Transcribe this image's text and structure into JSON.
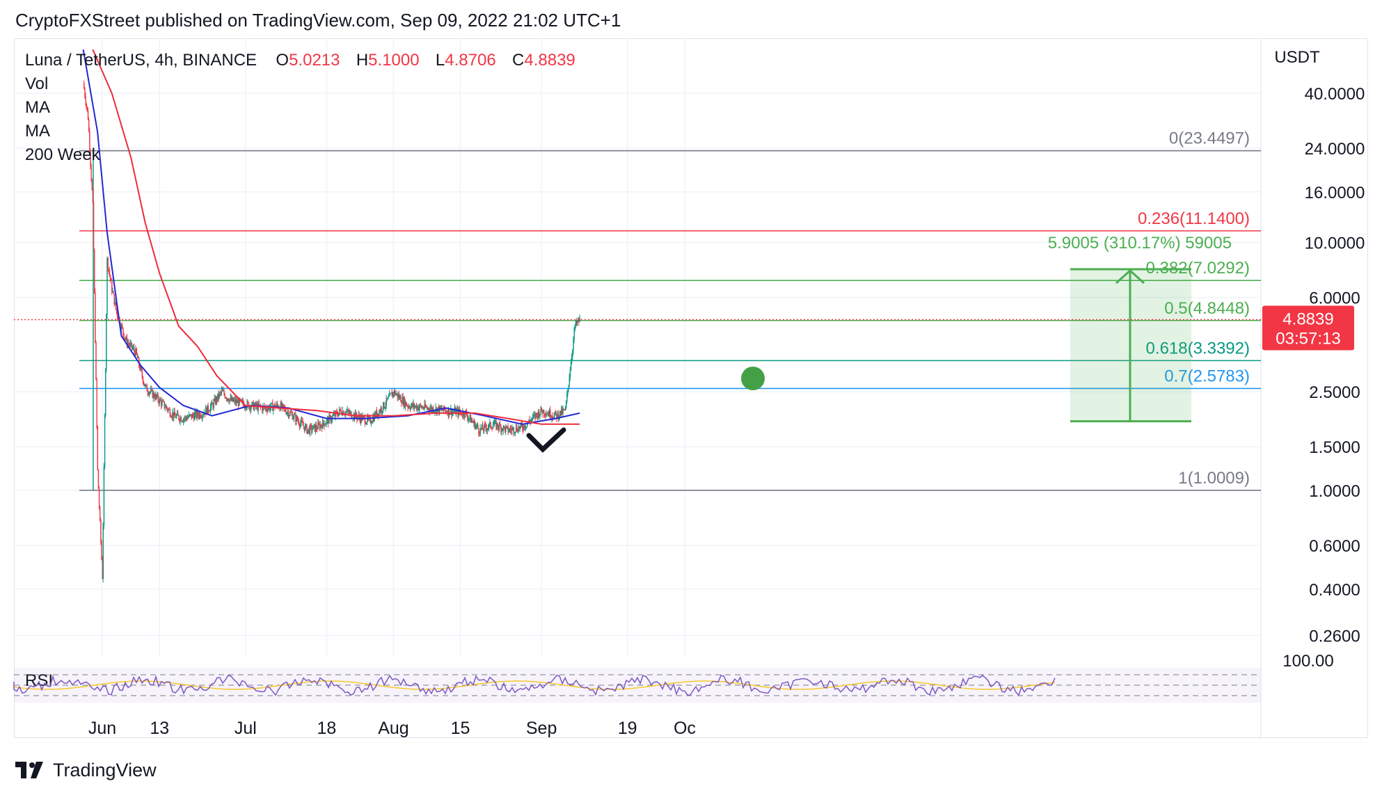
{
  "header": {
    "published_line": "CryptoFXStreet published on TradingView.com, Sep 09, 2022 21:02 UTC+1"
  },
  "legend": {
    "symbol": "Luna / TetherUS, 4h, BINANCE",
    "open_label": "O",
    "open_value": "5.0213",
    "high_label": "H",
    "high_value": "5.1000",
    "low_label": "L",
    "low_value": "4.8706",
    "close_label": "C",
    "close_value": "4.8839",
    "indicators": [
      "Vol",
      "MA",
      "MA",
      "200 Week"
    ]
  },
  "footer": {
    "brand": "TradingView"
  },
  "colors": {
    "up": "#089981",
    "down": "#f23645",
    "ma_fast": "#2128d4",
    "ma_slow": "#ee2b3b",
    "fib_green": "#4caf50",
    "fib_teal": "#089981",
    "fib_blue": "#2196f3",
    "fib_red": "#f23645",
    "fib_gray": "#787b86",
    "price_tag": "#f23645",
    "rsi": "#7e57c2",
    "rsi_ma": "#f5c92a"
  },
  "chart_data": {
    "type": "line",
    "price_scale": "log",
    "currency": "USDT",
    "y_ticks": [
      "40.0000",
      "24.0000",
      "16.0000",
      "10.0000",
      "6.0000",
      "2.5000",
      "1.5000",
      "1.0000",
      "0.6000",
      "0.4000",
      "0.2600"
    ],
    "x_ticks": [
      "Jun",
      "13",
      "Jul",
      "18",
      "Aug",
      "15",
      "Sep",
      "19",
      "Oc"
    ],
    "price_series": {
      "name": "Luna / TetherUS",
      "x": [
        "May 28",
        "May 29",
        "May 30",
        "May 31",
        "Jun 1",
        "Jun 2",
        "Jun 3",
        "Jun 4",
        "Jun 6",
        "Jun 8",
        "Jun 10",
        "Jun 12",
        "Jun 14",
        "Jun 16",
        "Jun 18",
        "Jun 20",
        "Jun 22",
        "Jun 24",
        "Jun 26",
        "Jun 28",
        "Jun 30",
        "Jul 2",
        "Jul 5",
        "Jul 8",
        "Jul 11",
        "Jul 14",
        "Jul 16",
        "Jul 18",
        "Jul 21",
        "Jul 24",
        "Jul 27",
        "Jul 30",
        "Aug 1",
        "Aug 4",
        "Aug 8",
        "Aug 12",
        "Aug 16",
        "Aug 19",
        "Aug 22",
        "Aug 25",
        "Aug 28",
        "Sep 1",
        "Sep 4",
        "Sep 6",
        "Sep 8",
        "Sep 9"
      ],
      "close": [
        44,
        32,
        14,
        1.2,
        0.45,
        8.5,
        6.5,
        5.2,
        4.0,
        3.6,
        2.6,
        2.4,
        2.2,
        2.0,
        1.95,
        2.0,
        2.05,
        2.2,
        2.5,
        2.3,
        2.25,
        2.2,
        2.15,
        2.2,
        2.0,
        1.75,
        1.8,
        1.9,
        2.1,
        2.0,
        1.9,
        2.2,
        2.5,
        2.2,
        2.15,
        2.1,
        2.05,
        1.75,
        1.85,
        1.75,
        1.8,
        2.1,
        2.0,
        2.1,
        4.6,
        4.8839
      ]
    },
    "ma_series": [
      {
        "name": "MA",
        "x": [
          "May 28",
          "May 31",
          "Jun 2",
          "Jun 5",
          "Jun 9",
          "Jun 13",
          "Jun 18",
          "Jun 24",
          "Jul 2",
          "Jul 10",
          "Jul 18",
          "Jul 26",
          "Aug 4",
          "Aug 12",
          "Aug 20",
          "Aug 28",
          "Sep 4",
          "Sep 9"
        ],
        "values": [
          60,
          28,
          11,
          4.2,
          3.2,
          2.6,
          2.2,
          2.0,
          2.2,
          2.15,
          1.95,
          1.95,
          2.0,
          2.15,
          2.0,
          1.85,
          1.95,
          2.05
        ]
      },
      {
        "name": "MA",
        "x": [
          "May 30",
          "Jun 3",
          "Jun 7",
          "Jun 10",
          "Jun 13",
          "Jun 17",
          "Jun 21",
          "Jun 25",
          "Jul 1",
          "Jul 8",
          "Jul 16",
          "Jul 24",
          "Aug 1",
          "Aug 10",
          "Aug 18",
          "Aug 25",
          "Sep 1",
          "Sep 9"
        ],
        "values": [
          60,
          40,
          22,
          12,
          7.5,
          4.6,
          3.8,
          2.9,
          2.2,
          2.15,
          2.1,
          2.0,
          2.0,
          2.05,
          2.05,
          1.95,
          1.85,
          1.85
        ]
      }
    ],
    "last_price": "4.8839",
    "countdown": "03:57:13",
    "fib_levels": [
      {
        "label": "0(23.4497)",
        "value": 23.4497
      },
      {
        "label": "0.236(11.1400)",
        "value": 11.14
      },
      {
        "label": "0.382(7.0292)",
        "value": 7.0292
      },
      {
        "label": "0.5(4.8448)",
        "value": 4.8448
      },
      {
        "label": "0.618(3.3392)",
        "value": 3.3392
      },
      {
        "label": "0.7(2.5783)",
        "value": 2.5783
      },
      {
        "label": "1(1.0009)",
        "value": 1.0009
      }
    ],
    "measure": {
      "label": "5.9005 (310.17%) 59005",
      "from": 1.9,
      "to": 7.8
    },
    "rsi": {
      "label": "RSI",
      "top_tick": "100.00"
    }
  }
}
